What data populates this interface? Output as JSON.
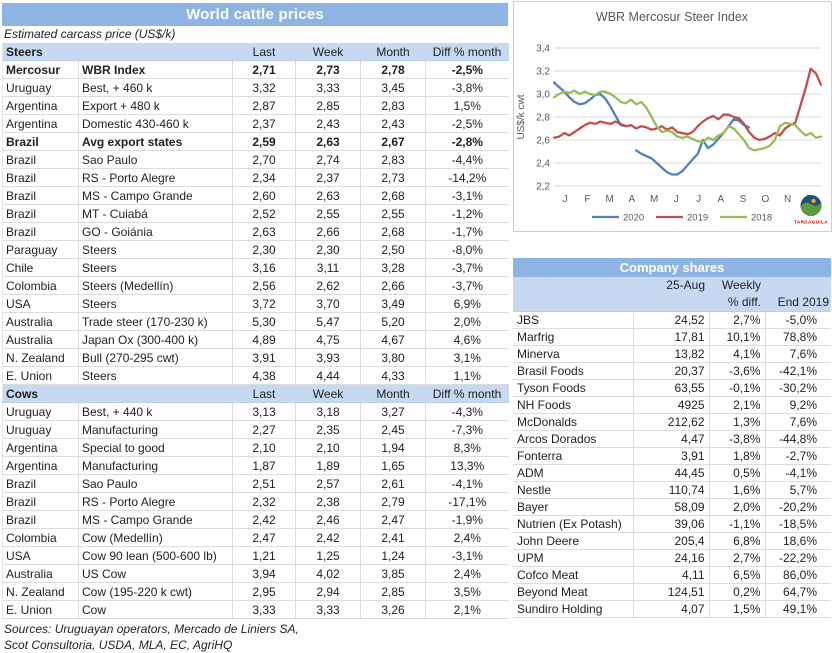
{
  "cattle_table": {
    "title": "World cattle prices",
    "subtitle": "Estimated carcass price (US$/k)",
    "column_headers": [
      "Last",
      "Week",
      "Month",
      "Diff % month"
    ],
    "sections": [
      {
        "name": "Steers",
        "rows": [
          [
            "Mercosur",
            "WBR Index",
            "2,71",
            "2,73",
            "2,78",
            "-2,5%",
            "bold"
          ],
          [
            "Uruguay",
            "Best, + 460 k",
            "3,32",
            "3,33",
            "3,45",
            "-3,8%"
          ],
          [
            "Argentina",
            "Export + 480 k",
            "2,87",
            "2,85",
            "2,83",
            "1,5%"
          ],
          [
            "Argentina",
            "Domestic 430-460 k",
            "2,37",
            "2,43",
            "2,43",
            "-2,5%"
          ],
          [
            "Brazil",
            "Avg export states",
            "2,59",
            "2,63",
            "2,67",
            "-2,8%",
            "bold"
          ],
          [
            "Brazil",
            "Sao Paulo",
            "2,70",
            "2,74",
            "2,83",
            "-4,4%"
          ],
          [
            "Brazil",
            "RS - Porto Alegre",
            "2,34",
            "2,37",
            "2,73",
            "-14,2%"
          ],
          [
            "Brazil",
            "MS - Campo Grande",
            "2,60",
            "2,63",
            "2,68",
            "-3,1%"
          ],
          [
            "Brazil",
            "MT - Cuiabá",
            "2,52",
            "2,55",
            "2,55",
            "-1,2%"
          ],
          [
            "Brazil",
            "GO - Goiánia",
            "2,63",
            "2,66",
            "2,68",
            "-1,7%"
          ],
          [
            "Paraguay",
            "Steers",
            "2,30",
            "2,30",
            "2,50",
            "-8,0%"
          ],
          [
            "Chile",
            "Steers",
            "3,16",
            "3,11",
            "3,28",
            "-3,7%"
          ],
          [
            "Colombia",
            "Steers (Medellín)",
            "2,56",
            "2,62",
            "2,66",
            "-3,7%"
          ],
          [
            "USA",
            "Steers",
            "3,72",
            "3,70",
            "3,49",
            "6,9%"
          ],
          [
            "Australia",
            "Trade steer (170-230 k)",
            "5,30",
            "5,47",
            "5,20",
            "2,0%"
          ],
          [
            "Australia",
            "Japan Ox (300-400 k)",
            "4,89",
            "4,75",
            "4,67",
            "4,6%"
          ],
          [
            "N. Zealand",
            "Bull (270-295 cwt)",
            "3,91",
            "3,93",
            "3,80",
            "3,1%"
          ],
          [
            "E. Union",
            "Steers",
            "4,38",
            "4,44",
            "4,33",
            "1,1%"
          ]
        ]
      },
      {
        "name": "Cows",
        "rows": [
          [
            "Uruguay",
            "Best, + 440 k",
            "3,13",
            "3,18",
            "3,27",
            "-4,3%"
          ],
          [
            "Uruguay",
            "Manufacturing",
            "2,27",
            "2,35",
            "2,45",
            "-7,3%"
          ],
          [
            "Argentina",
            "Special to good",
            "2,10",
            "2,10",
            "1,94",
            "8,3%"
          ],
          [
            "Argentina",
            "Manufacturing",
            "1,87",
            "1,89",
            "1,65",
            "13,3%"
          ],
          [
            "Brazil",
            "Sao Paulo",
            "2,51",
            "2,57",
            "2,61",
            "-4,1%"
          ],
          [
            "Brazil",
            "RS - Porto Alegre",
            "2,32",
            "2,38",
            "2,79",
            "-17,1%"
          ],
          [
            "Brazil",
            "MS - Campo Grande",
            "2,42",
            "2,46",
            "2,47",
            "-1,9%"
          ],
          [
            "Colombia",
            "Cow (Medellín)",
            "2,47",
            "2,42",
            "2,41",
            "2,4%"
          ],
          [
            "USA",
            "Cow 90 lean (500-600 lb)",
            "1,21",
            "1,25",
            "1,24",
            "-3,1%"
          ],
          [
            "Australia",
            "US Cow",
            "3,94",
            "4,02",
            "3,85",
            "2,4%"
          ],
          [
            "N. Zealand",
            "Cow (195-220 k cwt)",
            "2,95",
            "2,94",
            "2,85",
            "3,5%"
          ],
          [
            "E. Union",
            "Cow",
            "3,33",
            "3,33",
            "3,26",
            "2,1%"
          ]
        ]
      }
    ],
    "sources": [
      "Sources: Uruguayan operators, Mercado de Liniers SA,",
      "Scot Consultoria, USDA, MLA, EC, AgriHQ"
    ]
  },
  "chart_data": {
    "type": "line",
    "title": "WBR Mercosur Steer Index",
    "ylabel": "US$/k cwt",
    "ylim": [
      2.2,
      3.4
    ],
    "ytick_labels": [
      "3,4",
      "3,2",
      "3,0",
      "2,8",
      "2,6",
      "2,4",
      "2,2"
    ],
    "x_months": [
      "J",
      "F",
      "M",
      "A",
      "M",
      "J",
      "J",
      "A",
      "S",
      "O",
      "N",
      "D"
    ],
    "x_unit": "weeks",
    "weeks_span": 52,
    "grid": true,
    "legend_position": "bottom",
    "series": [
      {
        "name": "2020",
        "color": "#4F81BD",
        "values": [
          3.1,
          3.06,
          3.02,
          2.97,
          2.93,
          2.91,
          2.92,
          2.95,
          2.99,
          3.0,
          2.96,
          2.89,
          2.81,
          2.73,
          2.72,
          null,
          2.51,
          2.48,
          2.46,
          2.44,
          2.4,
          2.36,
          2.32,
          2.3,
          2.3,
          2.33,
          2.38,
          2.43,
          2.48,
          2.6,
          2.53,
          2.56,
          2.61,
          2.66,
          2.72,
          2.78,
          2.77,
          2.73,
          2.71
        ]
      },
      {
        "name": "2019",
        "color": "#C0504D",
        "values": [
          2.62,
          2.63,
          2.66,
          2.64,
          2.67,
          2.7,
          2.73,
          2.75,
          2.74,
          2.76,
          2.75,
          2.74,
          2.76,
          2.74,
          2.72,
          2.73,
          2.7,
          2.72,
          2.71,
          2.69,
          2.7,
          2.72,
          2.69,
          2.71,
          2.67,
          2.66,
          2.65,
          2.67,
          2.72,
          2.76,
          2.79,
          2.81,
          2.78,
          2.82,
          2.82,
          2.8,
          2.79,
          2.74,
          2.67,
          2.62,
          2.6,
          2.61,
          2.63,
          2.66,
          2.64,
          2.7,
          2.73,
          2.75,
          2.9,
          3.05,
          3.22,
          3.18,
          3.08
        ]
      },
      {
        "name": "2018",
        "color": "#9BBB59",
        "values": [
          2.97,
          3.0,
          3.02,
          3.01,
          3.03,
          3.0,
          3.02,
          3.0,
          2.99,
          3.02,
          3.02,
          3.0,
          2.97,
          2.93,
          2.92,
          2.95,
          2.91,
          2.93,
          2.88,
          2.8,
          2.72,
          2.67,
          2.68,
          2.67,
          2.63,
          2.62,
          2.63,
          2.61,
          2.59,
          2.58,
          2.62,
          2.6,
          2.64,
          2.66,
          2.72,
          2.7,
          2.65,
          2.6,
          2.53,
          2.51,
          2.52,
          2.53,
          2.55,
          2.6,
          2.72,
          2.75,
          2.74,
          2.73,
          2.68,
          2.64,
          2.66,
          2.62,
          2.63
        ]
      }
    ]
  },
  "company_table": {
    "title": "Company shares",
    "header_row1": [
      "",
      "25-Aug",
      "Weekly",
      ""
    ],
    "header_row2": [
      "",
      "",
      "% diff.",
      "End 2019"
    ],
    "rows": [
      [
        "JBS",
        "24,52",
        "2,7%",
        "-5,0%"
      ],
      [
        "Marfrig",
        "17,81",
        "10,1%",
        "78,8%"
      ],
      [
        "Minerva",
        "13,82",
        "4,1%",
        "7,6%"
      ],
      [
        "Brasil Foods",
        "20,37",
        "-3,6%",
        "-42,1%"
      ],
      [
        "Tyson Foods",
        "63,55",
        "-0,1%",
        "-30,2%"
      ],
      [
        "NH Foods",
        "4925",
        "2,1%",
        "9,2%"
      ],
      [
        "McDonalds",
        "212,62",
        "1,3%",
        "7,6%"
      ],
      [
        "Arcos Dorados",
        "4,47",
        "-3,8%",
        "-44,8%"
      ],
      [
        "Fonterra",
        "3,91",
        "1,8%",
        "-2,7%"
      ],
      [
        "ADM",
        "44,45",
        "0,5%",
        "-4,1%"
      ],
      [
        "Nestle",
        "110,74",
        "1,6%",
        "5,7%"
      ],
      [
        "Bayer",
        "58,09",
        "2,0%",
        "-20,2%"
      ],
      [
        "Nutrien (Ex Potash)",
        "39,06",
        "-1,1%",
        "-18,5%"
      ],
      [
        "John Deere",
        "205,4",
        "6,8%",
        "18,6%"
      ],
      [
        "UPM",
        "24,16",
        "2,7%",
        "-22,2%"
      ],
      [
        "Cofco Meat",
        "4,11",
        "6,5%",
        "86,0%"
      ],
      [
        "Beyond Meat",
        "124,51",
        "0,2%",
        "64,7%"
      ],
      [
        "Sundiro Holding",
        "4,07",
        "1,5%",
        "49,1%"
      ]
    ]
  },
  "logo": {
    "brand": "TARDAGUILA"
  },
  "colors": {
    "band_blue": "#8DB4E2",
    "header_light_blue": "#C6D9F1",
    "series_2020": "#4F81BD",
    "series_2019": "#C0504D",
    "series_2018": "#9BBB59",
    "chart_grid": "#D9D9D9",
    "chart_text": "#595959",
    "table_border": "#DCDCDC"
  }
}
